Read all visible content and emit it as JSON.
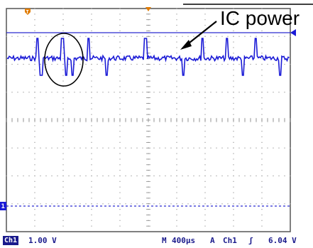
{
  "annotation": {
    "text": "IC power"
  },
  "status_bar": {
    "channel_badge": "Ch1",
    "volts_per_div": "1.00 V",
    "timebase_mode": "M",
    "time_per_div": "400µs",
    "trigger_mode": "A",
    "trigger_source": "Ch1",
    "trigger_slope": "ʃ",
    "trigger_level": "6.04 V"
  },
  "colors": {
    "trace": "#1a1ad6",
    "grid": "#9a9a9a",
    "text": "#1a1a8c",
    "trigger_marker": "#e07b00"
  },
  "icons": [
    "trigger-position-icon",
    "ground-reference-icon",
    "channel-marker-icon",
    "arrow-icon",
    "highlight-circle-icon"
  ]
}
